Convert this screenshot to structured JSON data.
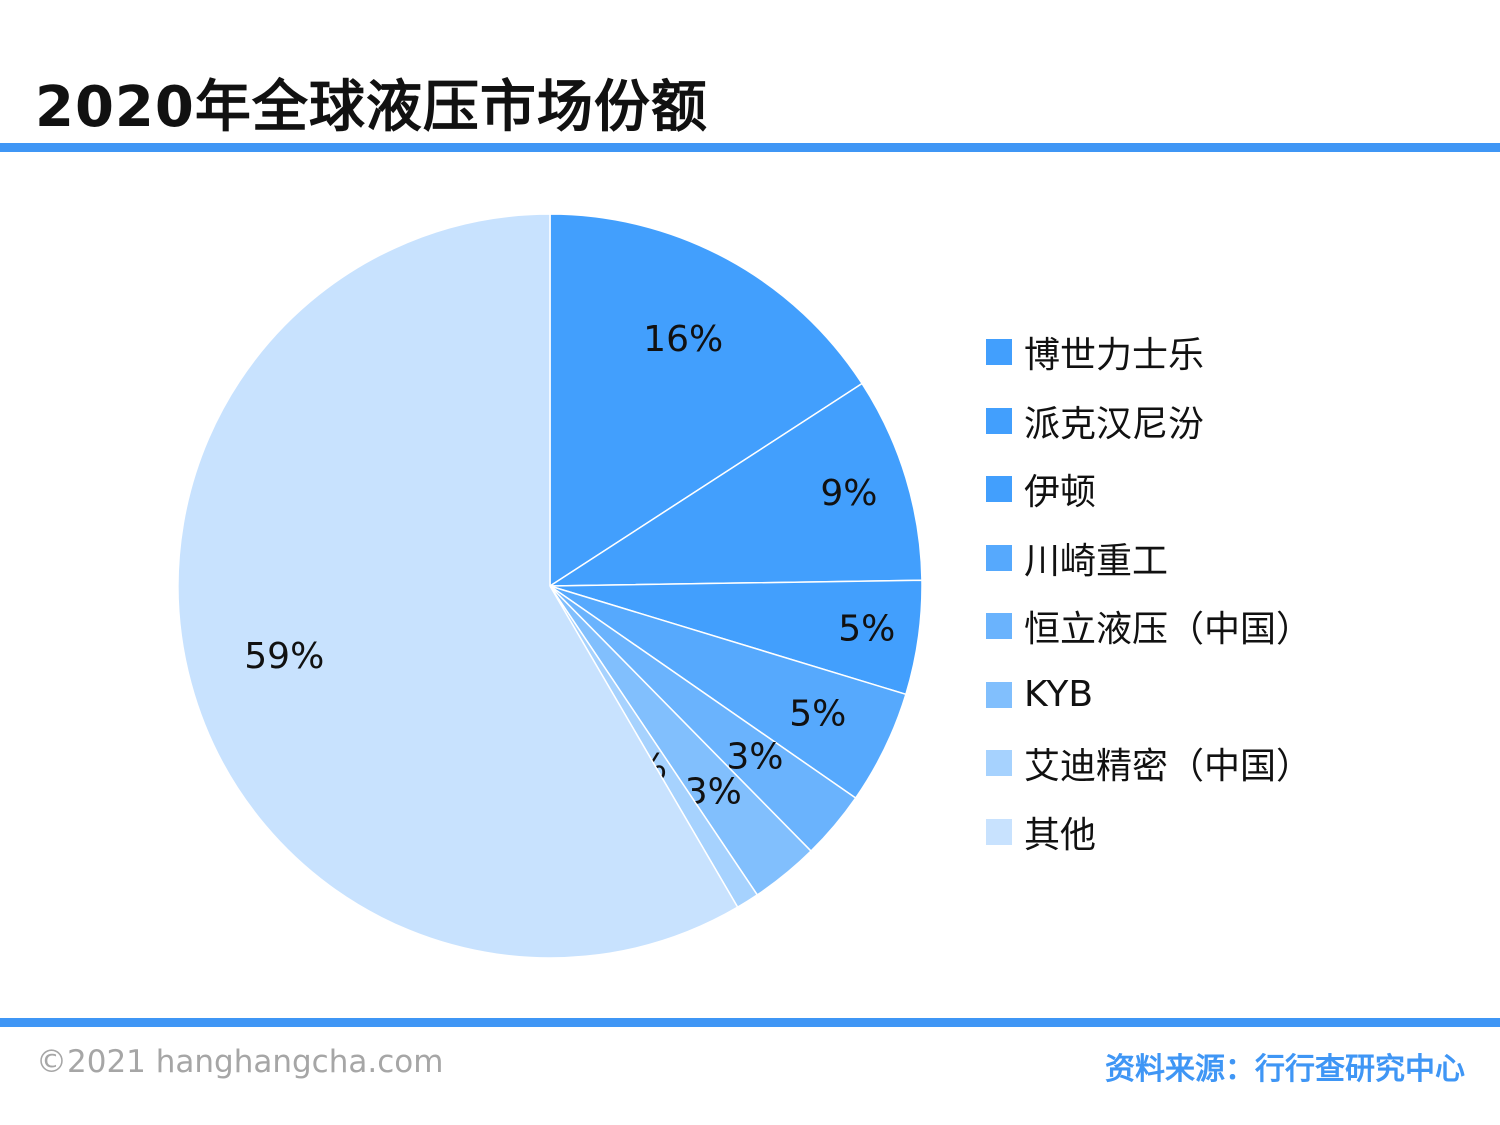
{
  "title": "2020年全球液压市场份额",
  "copyright": "©2021 hanghangcha.com",
  "source": "资料来源：行行查研究中心",
  "colors": {
    "accent": "#3f96f5"
  },
  "chart_data": {
    "type": "pie",
    "categories": [
      "博世力士乐",
      "派克汉尼汾",
      "伊顿",
      "川崎重工",
      "恒立液压（中国）",
      "KYB",
      "艾迪精密（中国）",
      "其他"
    ],
    "values": [
      16,
      9,
      5,
      5,
      3,
      3,
      1,
      59
    ],
    "labels": [
      "16%",
      "9%",
      "5%",
      "5%",
      "3%",
      "3%",
      "1%",
      "59%"
    ],
    "colors": [
      "#429ffd",
      "#429ffd",
      "#429ffd",
      "#56a9fd",
      "#6ab3fd",
      "#81bffd",
      "#a6d2fe",
      "#c8e2fe"
    ],
    "legend_position": "right"
  }
}
